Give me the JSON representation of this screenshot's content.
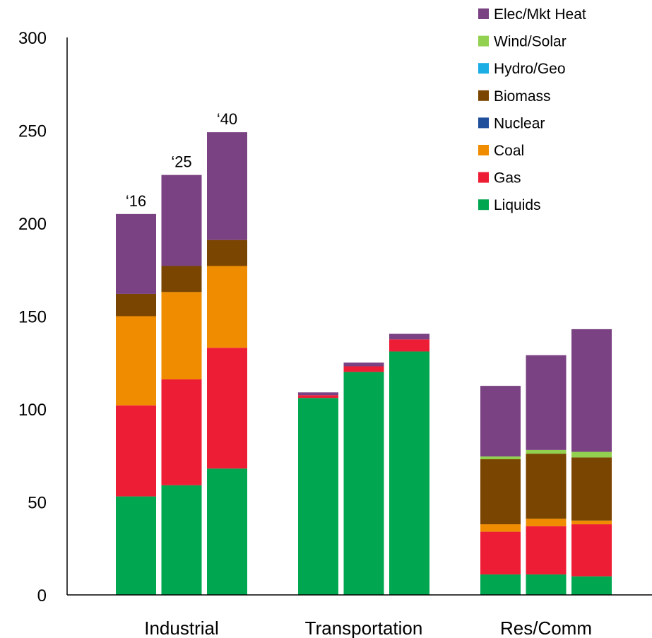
{
  "chart_data": {
    "type": "bar",
    "stacked": true,
    "title": "",
    "xlabel": "",
    "ylabel": "",
    "ylim": [
      0,
      300
    ],
    "yticks": [
      0,
      50,
      100,
      150,
      200,
      250,
      300
    ],
    "grid": false,
    "legend_position": "top-right",
    "groups": [
      "Industrial",
      "Transportation",
      "Res/Comm"
    ],
    "years": [
      "2016",
      "2025",
      "2040"
    ],
    "year_labels": [
      "‘16",
      "‘25",
      "‘40"
    ],
    "series": [
      {
        "name": "Liquids",
        "color": "#00A650",
        "values": [
          [
            53,
            59,
            68
          ],
          [
            106,
            120,
            131
          ],
          [
            11,
            11,
            10
          ]
        ]
      },
      {
        "name": "Gas",
        "color": "#EE1D36",
        "values": [
          [
            49,
            57,
            65
          ],
          [
            1.5,
            3,
            6.5
          ],
          [
            23,
            26,
            28
          ]
        ]
      },
      {
        "name": "Coal",
        "color": "#F08C00",
        "values": [
          [
            48,
            47,
            44
          ],
          [
            0,
            0,
            0
          ],
          [
            4,
            4,
            2
          ]
        ]
      },
      {
        "name": "Nuclear",
        "color": "#1F4E9B",
        "values": [
          [
            0,
            0,
            0
          ],
          [
            0,
            0,
            0
          ],
          [
            0,
            0,
            0
          ]
        ]
      },
      {
        "name": "Biomass",
        "color": "#7A4500",
        "values": [
          [
            12,
            14,
            14
          ],
          [
            0,
            0,
            0
          ],
          [
            35,
            35,
            34
          ]
        ]
      },
      {
        "name": "Hydro/Geo",
        "color": "#1AAEE5",
        "values": [
          [
            0,
            0,
            0
          ],
          [
            0,
            0,
            0
          ],
          [
            0,
            0,
            0
          ]
        ]
      },
      {
        "name": "Wind/Solar",
        "color": "#92D050",
        "values": [
          [
            0,
            0,
            0
          ],
          [
            0,
            0,
            0
          ],
          [
            1.5,
            2,
            3
          ]
        ]
      },
      {
        "name": "Elec/Mkt Heat",
        "color": "#7A4282",
        "values": [
          [
            43,
            49,
            58
          ],
          [
            1.5,
            2,
            3
          ],
          [
            38,
            51,
            66
          ]
        ]
      }
    ]
  }
}
